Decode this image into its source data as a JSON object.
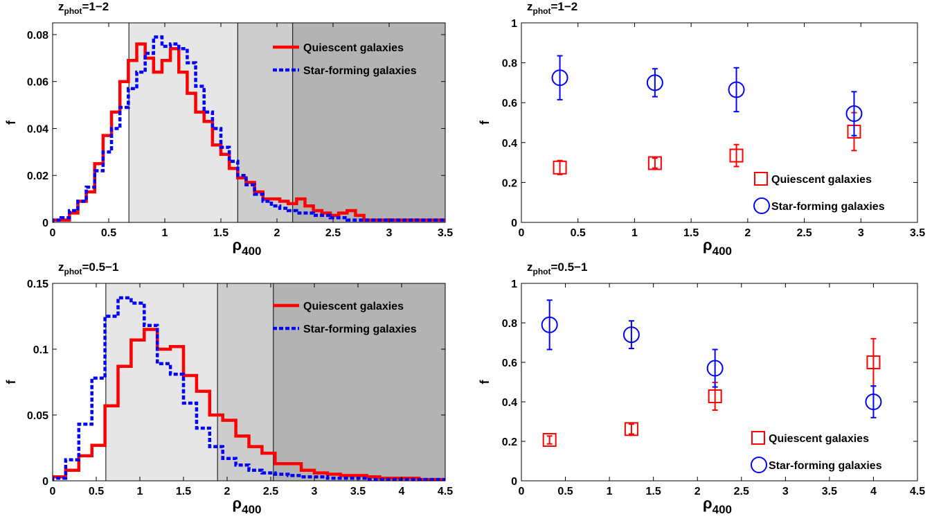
{
  "chart_data": [
    {
      "type": "histogram",
      "title_prefix": "z",
      "title_sub": "phot",
      "title_value": "=1−2",
      "xlabel_main": "ρ",
      "xlabel_sub": "400",
      "ylabel": "f",
      "xlim": [
        0,
        3.5
      ],
      "ylim": [
        0,
        0.085
      ],
      "xticks": [
        "0",
        "0.5",
        "1",
        "1.5",
        "2",
        "2.5",
        "3",
        "3.5"
      ],
      "yticks": [
        "0",
        "0.02",
        "0.04",
        "0.06",
        "0.08"
      ],
      "shaded_regions": [
        {
          "from": 0.68,
          "to": 1.65,
          "color": "#e6e6e6"
        },
        {
          "from": 1.65,
          "to": 2.14,
          "color": "#cdcdcd"
        },
        {
          "from": 2.14,
          "to": 3.5,
          "color": "#b3b3b3"
        }
      ],
      "legend": [
        "Quiescent galaxies",
        "Star-forming galaxies"
      ],
      "bin_width": 0.075,
      "series": [
        {
          "name": "Quiescent galaxies",
          "color": "#ff0000",
          "style": "solid",
          "values": [
            0.001,
            0.001,
            0.004,
            0.009,
            0.013,
            0.025,
            0.037,
            0.047,
            0.06,
            0.069,
            0.076,
            0.07,
            0.064,
            0.069,
            0.074,
            0.064,
            0.055,
            0.047,
            0.043,
            0.033,
            0.029,
            0.023,
            0.019,
            0.017,
            0.013,
            0.01,
            0.01,
            0.009,
            0.008,
            0.01,
            0.007,
            0.005,
            0.004,
            0.003,
            0.004,
            0.005,
            0.003,
            0.001,
            0.001,
            0.001,
            0.001,
            0.001,
            0.001,
            0.001,
            0.001,
            0.001,
            0.001
          ]
        },
        {
          "name": "Star-forming galaxies",
          "color": "#0000ff",
          "style": "dotted",
          "values": [
            0.001,
            0.002,
            0.005,
            0.009,
            0.015,
            0.022,
            0.03,
            0.04,
            0.049,
            0.057,
            0.064,
            0.072,
            0.079,
            0.075,
            0.076,
            0.074,
            0.068,
            0.058,
            0.047,
            0.04,
            0.032,
            0.026,
            0.02,
            0.016,
            0.012,
            0.009,
            0.007,
            0.006,
            0.005,
            0.004,
            0.004,
            0.003,
            0.003,
            0.002,
            0.002,
            0.001,
            0.001,
            0.001,
            0.001,
            0.001,
            0.001,
            0.001,
            0.001,
            0.001,
            0.001,
            0.001,
            0.001
          ]
        }
      ]
    },
    {
      "type": "scatter",
      "title_prefix": "z",
      "title_sub": "phot",
      "title_value": "=1−2",
      "xlabel_main": "ρ",
      "xlabel_sub": "400",
      "ylabel": "f",
      "xlim": [
        0,
        3.5
      ],
      "ylim": [
        0,
        1
      ],
      "xticks": [
        "0",
        "0.5",
        "1",
        "1.5",
        "2",
        "2.5",
        "3",
        "3.5"
      ],
      "yticks": [
        "0",
        "0.2",
        "0.4",
        "0.6",
        "0.8",
        "1"
      ],
      "legend": [
        "Quiescent galaxies",
        "Star-forming galaxies"
      ],
      "series": [
        {
          "name": "Quiescent galaxies",
          "color": "#ff0000",
          "marker": "square",
          "x": [
            0.34,
            1.18,
            1.9,
            2.94
          ],
          "y": [
            0.275,
            0.297,
            0.335,
            0.455
          ],
          "err": [
            0.035,
            0.025,
            0.055,
            0.095
          ]
        },
        {
          "name": "Star-forming galaxies",
          "color": "#0000ff",
          "marker": "circle",
          "x": [
            0.34,
            1.18,
            1.9,
            2.94
          ],
          "y": [
            0.725,
            0.7,
            0.665,
            0.545
          ],
          "err": [
            0.11,
            0.07,
            0.11,
            0.11
          ]
        }
      ]
    },
    {
      "type": "histogram",
      "title_prefix": "z",
      "title_sub": "phot",
      "title_value": "=0.5−1",
      "xlabel_main": "ρ",
      "xlabel_sub": "400",
      "ylabel": "f",
      "xlim": [
        0,
        4.5
      ],
      "ylim": [
        0,
        0.15
      ],
      "xticks": [
        "0",
        "0.5",
        "1",
        "1.5",
        "2",
        "2.5",
        "3",
        "3.5",
        "4",
        "4.5"
      ],
      "yticks": [
        "0",
        "0.05",
        "0.1",
        "0.15"
      ],
      "shaded_regions": [
        {
          "from": 0.61,
          "to": 1.89,
          "color": "#e6e6e6"
        },
        {
          "from": 1.89,
          "to": 2.53,
          "color": "#cdcdcd"
        },
        {
          "from": 2.53,
          "to": 4.5,
          "color": "#b3b3b3"
        }
      ],
      "legend": [
        "Quiescent galaxies",
        "Star-forming galaxies"
      ],
      "bin_width": 0.15,
      "series": [
        {
          "name": "Quiescent galaxies",
          "color": "#ff0000",
          "style": "solid",
          "values": [
            0.003,
            0.008,
            0.019,
            0.027,
            0.057,
            0.087,
            0.107,
            0.115,
            0.1,
            0.102,
            0.08,
            0.068,
            0.05,
            0.046,
            0.034,
            0.026,
            0.021,
            0.013,
            0.013,
            0.008,
            0.006,
            0.005,
            0.004,
            0.004,
            0.003,
            0.002,
            0.002,
            0.002,
            0.001,
            0.001
          ]
        },
        {
          "name": "Star-forming galaxies",
          "color": "#0000ff",
          "style": "dotted",
          "values": [
            0.002,
            0.016,
            0.043,
            0.078,
            0.125,
            0.139,
            0.135,
            0.118,
            0.089,
            0.081,
            0.059,
            0.04,
            0.026,
            0.017,
            0.012,
            0.008,
            0.006,
            0.005,
            0.004,
            0.003,
            0.003,
            0.002,
            0.002,
            0.002,
            0.001,
            0.001,
            0.001,
            0.001,
            0.001,
            0.001
          ]
        }
      ]
    },
    {
      "type": "scatter",
      "title_prefix": "z",
      "title_sub": "phot",
      "title_value": "=0.5−1",
      "xlabel_main": "ρ",
      "xlabel_sub": "400",
      "ylabel": "f",
      "xlim": [
        0,
        4.5
      ],
      "ylim": [
        0,
        1
      ],
      "xticks": [
        "0",
        "0.5",
        "1",
        "1.5",
        "2",
        "2.5",
        "3",
        "3.5",
        "4",
        "4.5"
      ],
      "yticks": [
        "0",
        "0.2",
        "0.4",
        "0.6",
        "0.8",
        "1"
      ],
      "legend": [
        "Quiescent galaxies",
        "Star-forming galaxies"
      ],
      "series": [
        {
          "name": "Quiescent galaxies",
          "color": "#ff0000",
          "marker": "square",
          "x": [
            0.32,
            1.25,
            2.2,
            4.0
          ],
          "y": [
            0.207,
            0.262,
            0.428,
            0.6
          ],
          "err": [
            0.02,
            0.025,
            0.07,
            0.12
          ]
        },
        {
          "name": "Star-forming galaxies",
          "color": "#0000ff",
          "marker": "circle",
          "x": [
            0.32,
            1.25,
            2.2,
            4.0
          ],
          "y": [
            0.79,
            0.74,
            0.57,
            0.4
          ],
          "err": [
            0.125,
            0.07,
            0.095,
            0.08
          ]
        }
      ]
    }
  ]
}
